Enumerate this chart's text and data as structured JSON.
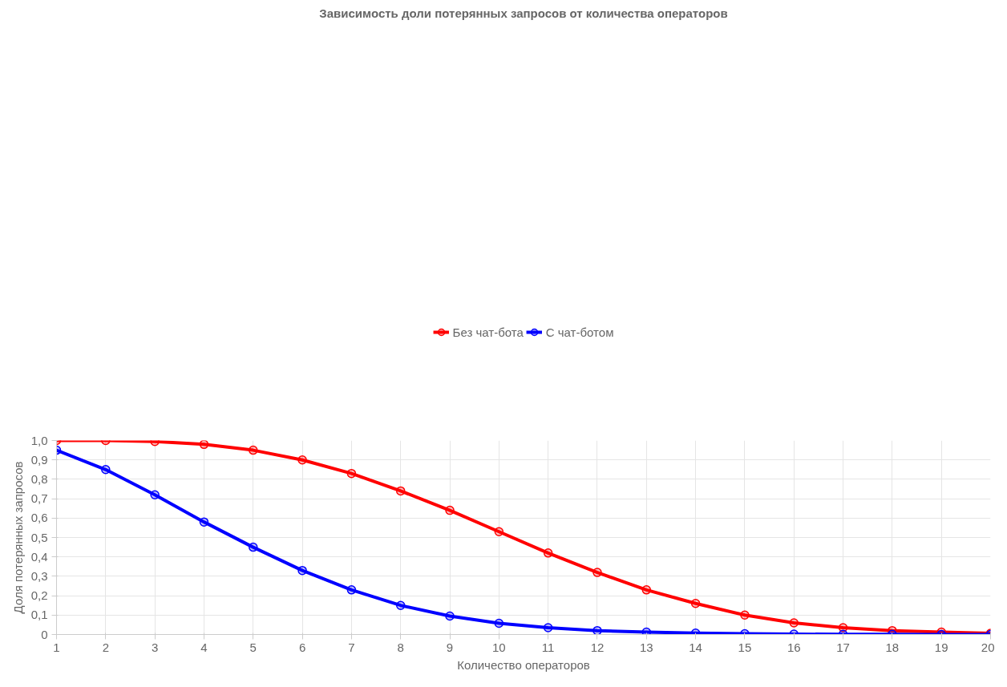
{
  "chart_data": {
    "type": "line",
    "title": "Зависимость доли потерянных запросов от количества операторов",
    "xlabel": "Количество операторов",
    "ylabel": "Доля потерянных запросов",
    "x": [
      1,
      2,
      3,
      4,
      5,
      6,
      7,
      8,
      9,
      10,
      11,
      12,
      13,
      14,
      15,
      16,
      17,
      18,
      19,
      20
    ],
    "series": [
      {
        "name": "Без чат-бота",
        "color": "#ff0000",
        "values": [
          1.0,
          1.0,
          0.995,
          0.98,
          0.95,
          0.9,
          0.83,
          0.74,
          0.64,
          0.53,
          0.42,
          0.32,
          0.23,
          0.16,
          0.1,
          0.06,
          0.035,
          0.02,
          0.012,
          0.006
        ]
      },
      {
        "name": "С чат-ботом",
        "color": "#0000ff",
        "values": [
          0.95,
          0.85,
          0.72,
          0.58,
          0.45,
          0.33,
          0.23,
          0.15,
          0.095,
          0.058,
          0.035,
          0.02,
          0.012,
          0.007,
          0.004,
          0.002,
          0.001,
          0.001,
          0.0,
          0.0
        ]
      }
    ],
    "xlim": [
      1,
      20
    ],
    "xticks": [
      1,
      2,
      3,
      4,
      5,
      6,
      7,
      8,
      9,
      10,
      11,
      12,
      13,
      14,
      15,
      16,
      17,
      18,
      19,
      20
    ],
    "ylim": [
      0,
      1
    ],
    "yticks": [
      0,
      {
        "value": 0.1,
        "label": "0,1"
      },
      {
        "value": 0.2,
        "label": "0,2"
      },
      {
        "value": 0.3,
        "label": "0,3"
      },
      {
        "value": 0.4,
        "label": "0,4"
      },
      {
        "value": 0.5,
        "label": "0,5"
      },
      {
        "value": 0.6,
        "label": "0,6"
      },
      {
        "value": 0.7,
        "label": "0,7"
      },
      {
        "value": 0.8,
        "label": "0,8"
      },
      {
        "value": 0.9,
        "label": "0,9"
      },
      {
        "value": 1.0,
        "label": "1,0"
      }
    ],
    "grid": true,
    "legend": "top",
    "marker": "circle",
    "line_style": "solid"
  }
}
